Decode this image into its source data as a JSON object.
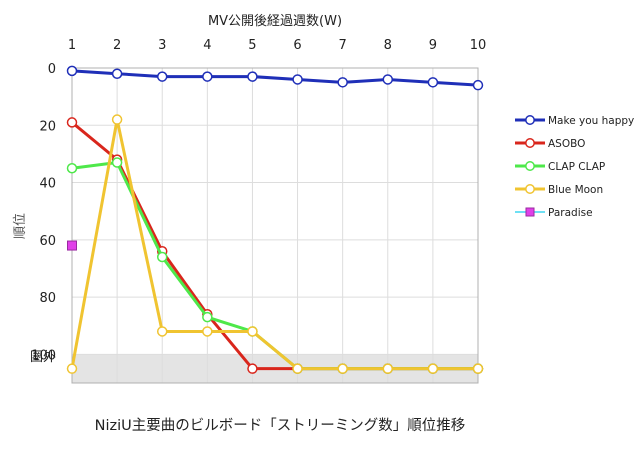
{
  "caption": "NiziU主要曲のビルボード「ストリーミング数」順位推移",
  "chart_data": {
    "type": "line",
    "title": "",
    "xlabel": "MV公開後経過週数(W)",
    "ylabel": "順位",
    "x": [
      1,
      2,
      3,
      4,
      5,
      6,
      7,
      8,
      9,
      10
    ],
    "y_ticks": [
      "0",
      "20",
      "40",
      "60",
      "80",
      "100"
    ],
    "y_out_label": "圏外",
    "ylim": [
      0,
      110
    ],
    "y_inverted": true,
    "out_of_chart_band": [
      100,
      110
    ],
    "grid": true,
    "legend_position": "right",
    "series": [
      {
        "name": "Make you happy",
        "color": "#1f2fb8",
        "values": [
          1,
          2,
          3,
          3,
          3,
          4,
          5,
          4,
          5,
          6
        ]
      },
      {
        "name": "ASOBO",
        "color": "#d9261c",
        "values": [
          19,
          32,
          64,
          86,
          105,
          105,
          105,
          105,
          105,
          105
        ]
      },
      {
        "name": "CLAP CLAP",
        "color": "#4ee84a",
        "values": [
          35,
          33,
          66,
          87,
          92,
          105,
          105,
          105,
          105,
          105
        ]
      },
      {
        "name": "Blue Moon",
        "color": "#f0c431",
        "values": [
          105,
          18,
          92,
          92,
          92,
          105,
          105,
          105,
          105,
          105
        ]
      },
      {
        "name": "Paradise",
        "color": "#e040e8",
        "line_color": "#3fd6f0",
        "values": [
          62,
          null,
          null,
          null,
          null,
          null,
          null,
          null,
          null,
          null
        ]
      }
    ]
  }
}
